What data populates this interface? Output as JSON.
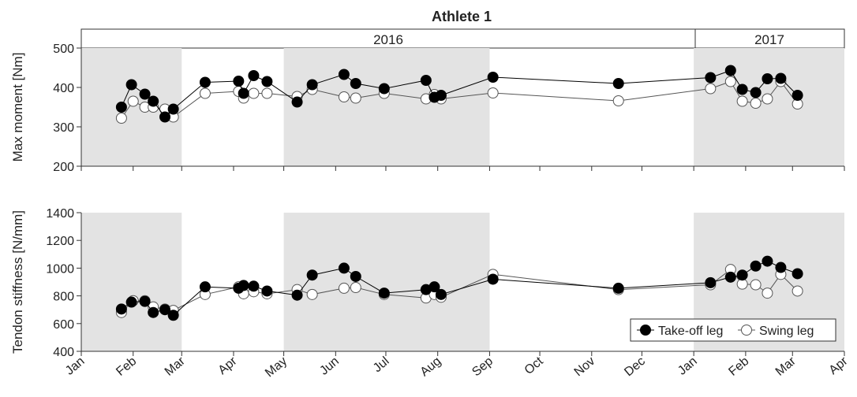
{
  "chart_data": {
    "type": "scatter",
    "title": "Athlete 1",
    "years": [
      "2016",
      "2017"
    ],
    "x_tick_labels": [
      "Jan",
      "Feb",
      "Mar",
      "Apr",
      "May",
      "Jun",
      "Jul",
      "Aug",
      "Sep",
      "Oct",
      "Nov",
      "Dec",
      "Jan",
      "Feb",
      "Mar",
      "Apr"
    ],
    "x_ticks": [
      "2016-01-01",
      "2016-02-01",
      "2016-03-01",
      "2016-04-01",
      "2016-05-01",
      "2016-06-01",
      "2016-07-01",
      "2016-08-01",
      "2016-09-01",
      "2016-10-01",
      "2016-11-01",
      "2016-12-01",
      "2017-01-01",
      "2017-02-01",
      "2017-03-01",
      "2017-04-01"
    ],
    "xlim": [
      "2016-01-01",
      "2017-04-01"
    ],
    "shaded_periods": [
      [
        "2016-01-01",
        "2016-03-01"
      ],
      [
        "2016-05-01",
        "2016-09-01"
      ],
      [
        "2017-01-01",
        "2017-04-01"
      ]
    ],
    "legend": {
      "position": "bottom-right"
    },
    "series_styles": [
      {
        "color": "#000000",
        "fill": "#000000"
      },
      {
        "color": "#555555",
        "fill": "#ffffff"
      }
    ],
    "panels": [
      {
        "ylabel": "Max moment [Nm]",
        "ylim": [
          200,
          500
        ],
        "yticks": [
          200,
          300,
          400,
          500
        ],
        "series": [
          {
            "name": "Take-off leg",
            "x": [
              "2016-01-25",
              "2016-01-31",
              "2016-02-08",
              "2016-02-13",
              "2016-02-20",
              "2016-02-25",
              "2016-03-15",
              "2016-04-04",
              "2016-04-07",
              "2016-04-13",
              "2016-04-21",
              "2016-05-09",
              "2016-05-18",
              "2016-06-06",
              "2016-06-13",
              "2016-06-30",
              "2016-07-25",
              "2016-07-30",
              "2016-08-03",
              "2016-09-03",
              "2016-11-17",
              "2017-01-11",
              "2017-01-23",
              "2017-01-30",
              "2017-02-07",
              "2017-02-14",
              "2017-02-22",
              "2017-03-04"
            ],
            "y": [
              350,
              407,
              383,
              365,
              325,
              345,
              413,
              416,
              385,
              430,
              415,
              363,
              407,
              433,
              410,
              397,
              418,
              375,
              380,
              426,
              410,
              425,
              443,
              395,
              387,
              422,
              423,
              380
            ]
          },
          {
            "name": "Swing leg",
            "x": [
              "2016-01-25",
              "2016-02-01",
              "2016-02-08",
              "2016-02-13",
              "2016-02-20",
              "2016-02-25",
              "2016-03-15",
              "2016-04-04",
              "2016-04-07",
              "2016-04-13",
              "2016-04-21",
              "2016-05-09",
              "2016-05-18",
              "2016-06-06",
              "2016-06-13",
              "2016-06-30",
              "2016-07-25",
              "2016-07-30",
              "2016-08-03",
              "2016-09-03",
              "2016-11-17",
              "2017-01-11",
              "2017-01-23",
              "2017-01-30",
              "2017-02-07",
              "2017-02-14",
              "2017-02-22",
              "2017-03-04"
            ],
            "y": [
              322,
              365,
              350,
              350,
              345,
              325,
              385,
              390,
              373,
              385,
              385,
              377,
              395,
              376,
              373,
              385,
              371,
              382,
              371,
              386,
              366,
              397,
              415,
              365,
              360,
              371,
              415,
              358
            ]
          }
        ]
      },
      {
        "ylabel": "Tendon stiffness [N/mm]",
        "ylim": [
          400,
          1400
        ],
        "yticks": [
          400,
          600,
          800,
          1000,
          1200,
          1400
        ],
        "series": [
          {
            "name": "Take-off leg",
            "x": [
              "2016-01-25",
              "2016-01-31",
              "2016-02-08",
              "2016-02-13",
              "2016-02-20",
              "2016-02-25",
              "2016-03-15",
              "2016-04-04",
              "2016-04-07",
              "2016-04-13",
              "2016-04-21",
              "2016-05-09",
              "2016-05-18",
              "2016-06-06",
              "2016-06-13",
              "2016-06-30",
              "2016-07-25",
              "2016-07-30",
              "2016-08-03",
              "2016-09-03",
              "2016-11-17",
              "2017-01-11",
              "2017-01-23",
              "2017-01-30",
              "2017-02-07",
              "2017-02-14",
              "2017-02-22",
              "2017-03-04"
            ],
            "y": [
              705,
              755,
              760,
              680,
              700,
              660,
              865,
              855,
              875,
              870,
              835,
              805,
              950,
              1000,
              940,
              820,
              845,
              865,
              810,
              920,
              855,
              895,
              935,
              950,
              1015,
              1050,
              1005,
              960
            ]
          },
          {
            "name": "Swing leg",
            "x": [
              "2016-01-25",
              "2016-02-01",
              "2016-02-08",
              "2016-02-13",
              "2016-02-20",
              "2016-02-25",
              "2016-03-15",
              "2016-04-04",
              "2016-04-07",
              "2016-04-13",
              "2016-04-21",
              "2016-05-09",
              "2016-05-18",
              "2016-06-06",
              "2016-06-13",
              "2016-06-30",
              "2016-07-25",
              "2016-07-30",
              "2016-08-03",
              "2016-09-03",
              "2016-11-17",
              "2017-01-11",
              "2017-01-23",
              "2017-01-30",
              "2017-02-07",
              "2017-02-14",
              "2017-02-22",
              "2017-03-04"
            ],
            "y": [
              680,
              765,
              765,
              720,
              705,
              695,
              810,
              865,
              815,
              830,
              815,
              845,
              810,
              855,
              860,
              810,
              785,
              810,
              790,
              955,
              845,
              880,
              990,
              885,
              880,
              820,
              955,
              835
            ]
          }
        ]
      }
    ]
  }
}
